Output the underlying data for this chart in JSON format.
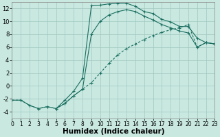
{
  "background_color": "#c8e8e0",
  "grid_color": "#a0c8c0",
  "line_color": "#1a6e60",
  "xlabel": "Humidex (Indice chaleur)",
  "xlim": [
    0,
    23
  ],
  "ylim": [
    -5,
    13
  ],
  "yticks": [
    -4,
    -2,
    0,
    2,
    4,
    6,
    8,
    10,
    12
  ],
  "xticks": [
    0,
    1,
    2,
    3,
    4,
    5,
    6,
    7,
    8,
    9,
    10,
    11,
    12,
    13,
    14,
    15,
    16,
    17,
    18,
    19,
    20,
    21,
    22,
    23
  ],
  "curve1_x": [
    0,
    1,
    2,
    3,
    4,
    5,
    6,
    7,
    8,
    9,
    10,
    11,
    12,
    13,
    14,
    15,
    16,
    17,
    18,
    19,
    20,
    21,
    22,
    23
  ],
  "curve1_y": [
    -2.2,
    -2.2,
    -3.0,
    -3.5,
    -3.2,
    -3.5,
    -2.2,
    -0.8,
    1.2,
    12.4,
    12.5,
    12.7,
    12.8,
    12.8,
    12.3,
    11.5,
    11.2,
    10.3,
    9.9,
    9.2,
    9.2,
    7.4,
    6.7,
    6.5
  ],
  "curve2_x": [
    0,
    1,
    2,
    3,
    4,
    5,
    6,
    7,
    8,
    9,
    10,
    11,
    12,
    13,
    14,
    15,
    16,
    17,
    18,
    19,
    20,
    21,
    22,
    23
  ],
  "curve2_y": [
    -2.2,
    -2.2,
    -3.0,
    -3.5,
    -3.2,
    -3.5,
    -2.7,
    -1.5,
    -0.5,
    0.5,
    2.0,
    3.5,
    4.8,
    5.8,
    6.5,
    7.2,
    7.8,
    8.3,
    8.7,
    9.0,
    9.5,
    6.0,
    6.7,
    6.5
  ],
  "curve3_x": [
    5,
    6,
    7,
    8,
    9,
    10,
    11,
    12,
    13,
    14,
    15,
    16,
    17,
    18,
    19,
    20,
    21,
    22,
    23
  ],
  "curve3_y": [
    -3.5,
    -2.7,
    -1.5,
    -0.5,
    8.0,
    10.0,
    11.0,
    11.5,
    11.8,
    11.5,
    10.8,
    10.2,
    9.5,
    9.0,
    8.5,
    8.2,
    6.0,
    6.7,
    6.5
  ]
}
